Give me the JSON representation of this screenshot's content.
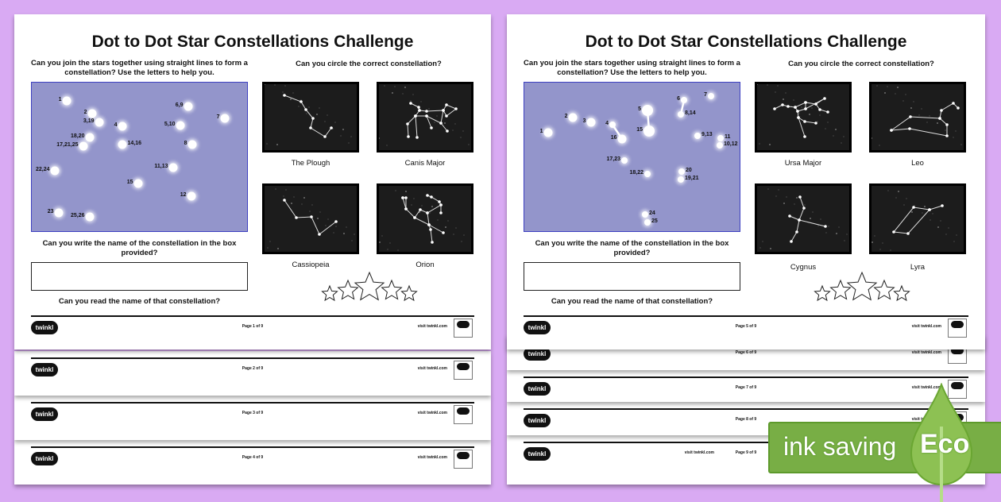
{
  "sheets": [
    {
      "title": "Dot to Dot Star Constellations Challenge",
      "q_join": "Can you join the stars together using straight lines to form a constellation? Use the letters to help you.",
      "q_circle": "Can you circle the correct constellation?",
      "q_write": "Can you write the name of the constellation in the box provided?",
      "q_read": "Can you read the name of that constellation?",
      "answer_value": "",
      "dot_labels": [
        "1",
        "2",
        "3,19",
        "4",
        "6,9",
        "5,10",
        "7",
        "18,20",
        "17,21,25",
        "14,16",
        "8",
        "22,24",
        "11,13",
        "15",
        "12",
        "23",
        "25,26"
      ],
      "constellations": [
        "The Plough",
        "Canis Major",
        "Cassiopeia",
        "Orion"
      ],
      "pages": [
        "Page 1 of 9",
        "Page 2 of 9",
        "Page 3 of 9",
        "Page 4 of 9"
      ]
    },
    {
      "title": "Dot to Dot Star Constellations Challenge",
      "q_join": "Can you join the stars together using straight lines to form a constellation? Use the letters to help you.",
      "q_circle": "Can you circle the correct constellation?",
      "q_write": "Can you write the name of the constellation in the box provided?",
      "q_read": "Can you read the name of that constellation?",
      "answer_value": "",
      "dot_labels": [
        "1",
        "2",
        "3",
        "4",
        "16",
        "5",
        "15",
        "6",
        "8,14",
        "7",
        "9,13",
        "11",
        "10,12",
        "17,23",
        "18,22",
        "20",
        "19,21",
        "24",
        "25"
      ],
      "constellations": [
        "Ursa Major",
        "Leo",
        "Cygnus",
        "Lyra"
      ],
      "pages": [
        "Page 5 of 9",
        "Page 6 of 9",
        "Page 7 of 9",
        "Page 8 of 9",
        "Page 9 of 9"
      ]
    }
  ],
  "footer": {
    "logo": "twinkl",
    "visit": "visit twinkl.com"
  },
  "eco_badge": {
    "text": "ink saving",
    "word": "Eco",
    "color": "#78ae45"
  },
  "colors": {
    "background": "#d9aaf3",
    "dot_box": "#9395cb"
  }
}
